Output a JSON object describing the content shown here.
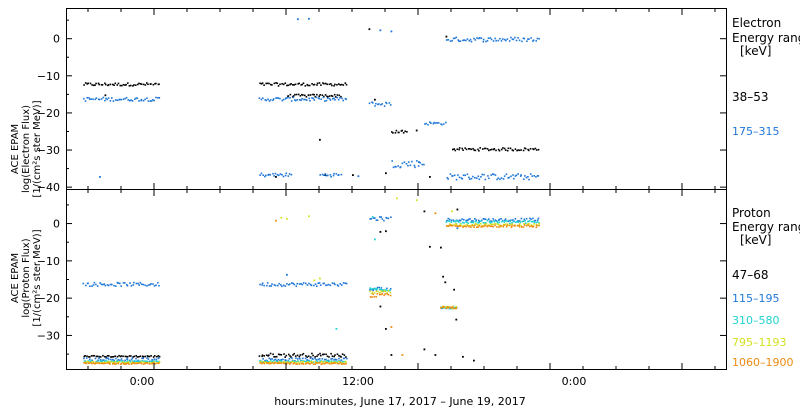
{
  "x_label": "hours:minutes, June 17, 2017 – June 19, 2017",
  "x_ticks": [
    "0:00",
    "12:00",
    "0:00"
  ],
  "chart_data": [
    {
      "type": "scatter",
      "panel": "electron",
      "ylabel_lines": [
        "ACE EPAM",
        "log(Electron Flux)",
        "[1/(cm²s ster MeV)]"
      ],
      "yticks": [
        0,
        -10,
        -20,
        -30,
        -40
      ],
      "ylim": [
        -40.5,
        8
      ],
      "xlim": [
        -8,
        52
      ],
      "legend": {
        "title_lines": [
          "Electron",
          "Energy range"
        ],
        "unit": "[keV]",
        "entries": [
          {
            "label": "38–53",
            "color": "#000000"
          },
          {
            "label": "175–315",
            "color": "#1f77d8"
          }
        ]
      },
      "series": [
        {
          "name": "38–53",
          "color": "#000000",
          "segments": [
            [
              -6.5,
              0.5,
              -12.5,
              -11.7
            ],
            [
              9.5,
              17.5,
              -12.5,
              -11.7
            ],
            [
              12.0,
              17.0,
              -15.5,
              -14.8
            ],
            [
              27.0,
              35.0,
              -30.0,
              -29.2
            ],
            [
              21.5,
              23.0,
              -25.2,
              -24.5
            ]
          ],
          "points": [
            [
              19.5,
              2.8
            ],
            [
              15.0,
              -27.0
            ],
            [
              11.0,
              -37.0
            ],
            [
              15.5,
              -36.5
            ],
            [
              21.0,
              -36.0
            ],
            [
              25.0,
              -37.0
            ],
            [
              23.8,
              -24.5
            ],
            [
              26.5,
              0.8
            ],
            [
              20.0,
              -16.2
            ],
            [
              -4.5,
              -15.0
            ],
            [
              18.0,
              -36.5
            ]
          ]
        },
        {
          "name": "175–315",
          "color": "#1f77d8",
          "segments": [
            [
              -6.5,
              0.5,
              -16.6,
              -15.6
            ],
            [
              9.5,
              17.5,
              -16.6,
              -15.6
            ],
            [
              19.5,
              21.5,
              -18.0,
              -16.8
            ],
            [
              26.5,
              35.0,
              -0.6,
              0.6
            ],
            [
              21.5,
              24.5,
              -34.5,
              -32.5
            ],
            [
              24.5,
              26.5,
              -23.0,
              -22.2
            ],
            [
              26.5,
              35.0,
              -37.8,
              -36.2
            ],
            [
              9.5,
              12.5,
              -37.0,
              -36.0
            ],
            [
              15.0,
              17.0,
              -37.0,
              -36.0
            ]
          ],
          "points": [
            [
              13.0,
              5.5
            ],
            [
              14.0,
              5.6
            ],
            [
              20.5,
              2.5
            ],
            [
              21.5,
              2.2
            ],
            [
              -5.0,
              -37.0
            ],
            [
              18.5,
              -36.8
            ],
            [
              24.0,
              -33.0
            ]
          ]
        }
      ]
    },
    {
      "type": "scatter",
      "panel": "proton",
      "ylabel_lines": [
        "ACE EPAM",
        "log(Proton Flux)",
        "[1/(cm²s ster MeV)]"
      ],
      "yticks": [
        0,
        -10,
        -20,
        -30
      ],
      "ylim": [
        -39,
        9
      ],
      "xlim": [
        -8,
        52
      ],
      "legend": {
        "title_lines": [
          "Proton",
          "Energy range"
        ],
        "unit": "[keV]",
        "entries": [
          {
            "label": "47–68",
            "color": "#000000"
          },
          {
            "label": "115–195",
            "color": "#1f77d8"
          },
          {
            "label": "310–580",
            "color": "#1fd3d3"
          },
          {
            "label": "795–1193",
            "color": "#d4e020"
          },
          {
            "label": "1060–1900",
            "color": "#ee8a10"
          }
        ]
      },
      "series": [
        {
          "name": "47–68",
          "color": "#000000",
          "segments": [
            [
              -6.5,
              0.5,
              -35.6,
              -35.2
            ],
            [
              9.5,
              17.5,
              -35.6,
              -34.6
            ]
          ],
          "points": [
            [
              20.5,
              -2.0
            ],
            [
              21.0,
              -1.8
            ],
            [
              20.5,
              -22.0
            ],
            [
              21.0,
              -28.0
            ],
            [
              21.5,
              -35.0
            ],
            [
              24.5,
              3.5
            ],
            [
              27.5,
              4.0
            ],
            [
              25.0,
              -6.0
            ],
            [
              26.0,
              -6.2
            ],
            [
              26.2,
              -14.0
            ],
            [
              26.4,
              -15.5
            ],
            [
              27.2,
              -17.5
            ],
            [
              27.4,
              -25.5
            ],
            [
              25.5,
              -35.0
            ],
            [
              28.0,
              -35.5
            ],
            [
              29.0,
              -36.5
            ],
            [
              24.5,
              -33.5
            ]
          ]
        },
        {
          "name": "115–195",
          "color": "#1f77d8",
          "segments": [
            [
              -6.5,
              0.5,
              -16.6,
              -15.6
            ],
            [
              9.5,
              17.5,
              -16.6,
              -15.6
            ],
            [
              19.5,
              21.5,
              -18.0,
              -16.8
            ],
            [
              26.5,
              35.0,
              0.8,
              1.6
            ],
            [
              19.5,
              21.5,
              1.0,
              2.0
            ],
            [
              26.0,
              27.5,
              -22.6,
              -22.0
            ],
            [
              -6.5,
              0.5,
              -36.8,
              -35.8
            ],
            [
              9.5,
              17.5,
              -36.8,
              -35.8
            ]
          ],
          "points": [
            [
              12.0,
              -13.5
            ],
            [
              27.5,
              -1.0
            ]
          ]
        },
        {
          "name": "310–580",
          "color": "#1fd3d3",
          "segments": [
            [
              26.5,
              35.0,
              0.2,
              1.0
            ],
            [
              19.5,
              21.5,
              -17.8,
              -17.0
            ],
            [
              26.0,
              27.5,
              -22.6,
              -22.0
            ],
            [
              -6.5,
              0.5,
              -37.0,
              -36.6
            ],
            [
              9.5,
              17.5,
              -37.0,
              -36.6
            ]
          ],
          "points": [
            [
              19.8,
              2.0
            ],
            [
              20.0,
              -4.0
            ],
            [
              16.5,
              -28.0
            ]
          ]
        },
        {
          "name": "795–1193",
          "color": "#d4e020",
          "segments": [
            [
              26.5,
              35.0,
              -0.4,
              0.2
            ],
            [
              19.5,
              21.5,
              -18.6,
              -17.8
            ],
            [
              26.0,
              27.5,
              -22.6,
              -22.0
            ],
            [
              -6.5,
              0.5,
              -37.2,
              -36.8
            ],
            [
              9.5,
              17.5,
              -37.2,
              -36.8
            ]
          ],
          "points": [
            [
              22.0,
              7.0
            ],
            [
              23.8,
              6.5
            ],
            [
              11.5,
              1.8
            ],
            [
              12.0,
              1.5
            ],
            [
              14.0,
              2.2
            ],
            [
              27.0,
              3.5
            ],
            [
              15.0,
              -14.5
            ],
            [
              14.5,
              -15.0
            ]
          ]
        },
        {
          "name": "1060–1900",
          "color": "#ee8a10",
          "segments": [
            [
              26.5,
              35.0,
              -0.8,
              -0.2
            ],
            [
              19.5,
              21.5,
              -19.6,
              -18.6
            ],
            [
              26.0,
              27.5,
              -22.6,
              -22.0
            ],
            [
              -6.5,
              0.5,
              -37.5,
              -37.1
            ],
            [
              9.5,
              17.5,
              -37.5,
              -37.1
            ]
          ],
          "points": [
            [
              11.0,
              1.0
            ],
            [
              25.5,
              3.0
            ],
            [
              21.5,
              -27.5
            ],
            [
              22.5,
              -35.0
            ]
          ]
        }
      ]
    }
  ]
}
